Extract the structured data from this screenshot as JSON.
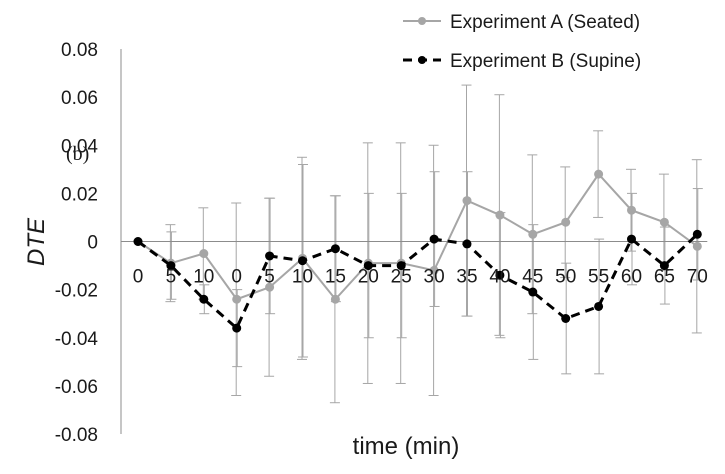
{
  "chart_data": {
    "type": "line",
    "panel_label": "(b)",
    "xlabel": "time (min)",
    "ylabel": "DTE",
    "ylim": [
      -0.08,
      0.08
    ],
    "yticks": [
      "0.08",
      "0.06",
      "0.04",
      "0.02",
      "0",
      "-0.02",
      "-0.04",
      "-0.06",
      "-0.08"
    ],
    "ytick_values": [
      0.08,
      0.06,
      0.04,
      0.02,
      0,
      -0.02,
      -0.04,
      -0.06,
      -0.08
    ],
    "categories": [
      "0",
      "5",
      "10",
      "0",
      "5",
      "10",
      "15",
      "20",
      "25",
      "30",
      "35",
      "40",
      "45",
      "50",
      "55",
      "60",
      "65",
      "70"
    ],
    "grid": false,
    "legend_position": "top-right",
    "series": [
      {
        "name": "Experiment A (Seated)",
        "style": "solid",
        "color": "#a6a6a6",
        "values": [
          0,
          -0.009,
          -0.005,
          -0.024,
          -0.019,
          -0.007,
          -0.024,
          -0.009,
          -0.009,
          -0.012,
          0.017,
          0.011,
          0.003,
          0.008,
          0.028,
          0.013,
          0.008,
          -0.002
        ],
        "error": [
          0,
          0.016,
          0.019,
          0.04,
          0.037,
          0.042,
          0.043,
          0.05,
          0.05,
          0.052,
          0.048,
          0.05,
          0.033,
          0.023,
          0.018,
          0.017,
          0.02,
          0.036
        ]
      },
      {
        "name": "Experiment B (Supine)",
        "style": "dashed",
        "color": "#000000",
        "values": [
          0,
          -0.01,
          -0.024,
          -0.036,
          -0.006,
          -0.008,
          -0.003,
          -0.01,
          -0.01,
          0.001,
          -0.001,
          -0.014,
          -0.021,
          -0.032,
          -0.027,
          0.001,
          -0.01,
          0.003
        ],
        "error": [
          0,
          0.014,
          0.006,
          0.016,
          0.024,
          0.04,
          0.022,
          0.03,
          0.03,
          0.028,
          0.03,
          0.026,
          0.028,
          0.023,
          0.028,
          0.019,
          0.016,
          0.019
        ]
      }
    ]
  }
}
